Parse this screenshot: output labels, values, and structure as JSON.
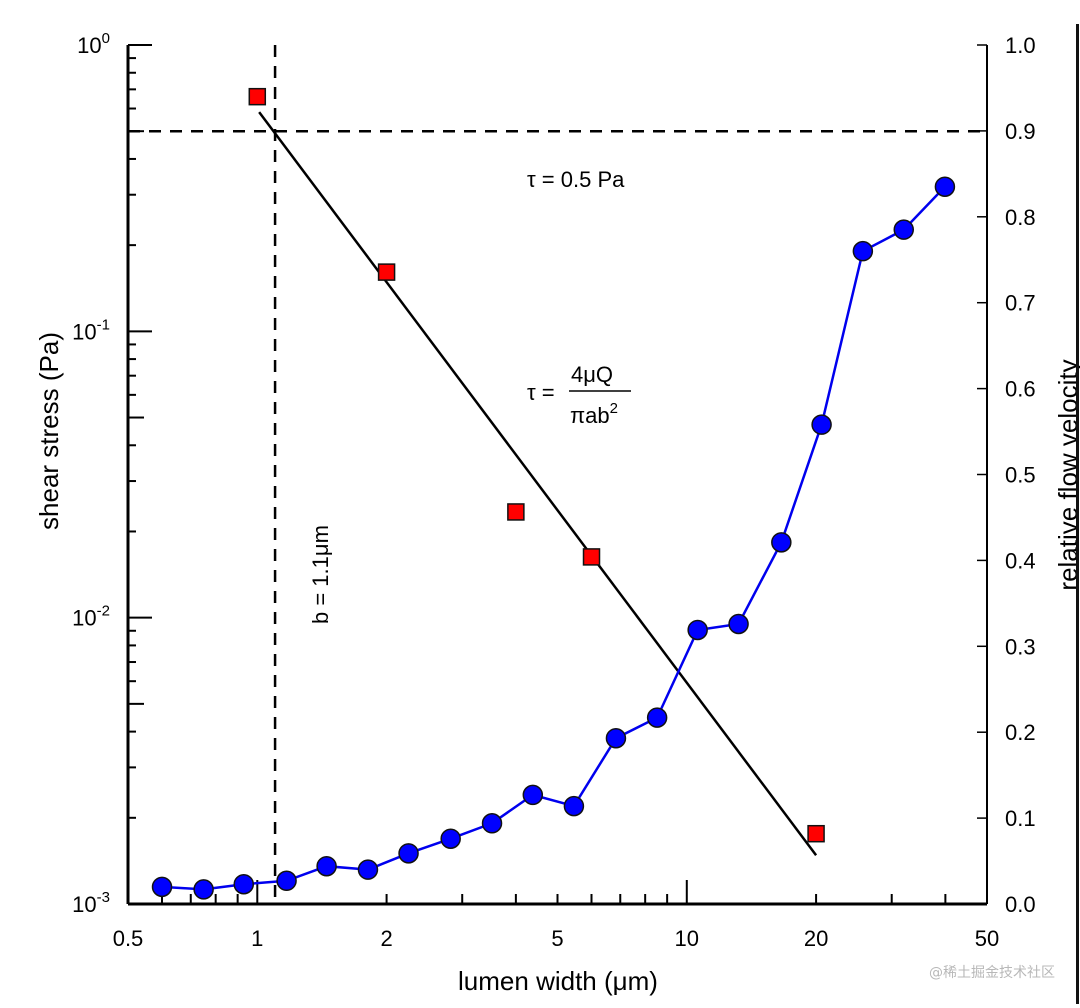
{
  "chart_data": {
    "type": "scatter",
    "title": "",
    "xlabel": "lumen width (μm)",
    "ylabel_left": "shear stress (Pa)",
    "ylabel_right": "relative flow velocity",
    "x_scale": "log",
    "xlim": [
      0.5,
      50
    ],
    "x_ticks": [
      {
        "value": 0.5,
        "label": "0.5"
      },
      {
        "value": 1,
        "label": "1"
      },
      {
        "value": 2,
        "label": "2"
      },
      {
        "value": 5,
        "label": "5"
      },
      {
        "value": 10,
        "label": "10"
      },
      {
        "value": 20,
        "label": "20"
      },
      {
        "value": 50,
        "label": "50"
      }
    ],
    "y_left_scale": "log",
    "y_left_lim": [
      0.001,
      1
    ],
    "y_left_ticks": [
      {
        "value": 0.001,
        "base": "10",
        "exp": "-3"
      },
      {
        "value": 0.01,
        "base": "10",
        "exp": "-2"
      },
      {
        "value": 0.1,
        "base": "10",
        "exp": "-1"
      },
      {
        "value": 1,
        "base": "10",
        "exp": "0"
      }
    ],
    "y_right_scale": "linear",
    "y_right_lim": [
      0.0,
      1.0
    ],
    "y_right_ticks": [
      "0.0",
      "0.1",
      "0.2",
      "0.3",
      "0.4",
      "0.5",
      "0.6",
      "0.7",
      "0.8",
      "0.9",
      "1.0"
    ],
    "grid": false,
    "series": [
      {
        "name": "shear stress",
        "axis": "left",
        "marker": "square",
        "color": "#ff0000",
        "x": [
          1.0,
          2.0,
          4.0,
          6.0,
          20.0
        ],
        "y": [
          0.66,
          0.161,
          0.0234,
          0.0163,
          0.00176
        ]
      },
      {
        "name": "shear stress fit",
        "axis": "left",
        "style": "line",
        "color": "#000000",
        "x": [
          1.01,
          20.0
        ],
        "y": [
          0.583,
          0.00148
        ]
      },
      {
        "name": "relative flow velocity",
        "axis": "right",
        "marker": "circle",
        "color": "#0000ff",
        "x": [
          0.6,
          0.75,
          0.93,
          1.17,
          1.45,
          1.81,
          2.25,
          2.82,
          3.52,
          4.38,
          5.46,
          6.84,
          8.53,
          10.6,
          13.2,
          16.6,
          20.6,
          25.7,
          32.0,
          39.9
        ],
        "y": [
          0.02,
          0.017,
          0.023,
          0.027,
          0.044,
          0.04,
          0.059,
          0.076,
          0.094,
          0.127,
          0.114,
          0.193,
          0.217,
          0.319,
          0.326,
          0.421,
          0.558,
          0.76,
          0.785,
          0.835
        ]
      }
    ],
    "reference_lines": [
      {
        "name": "tau-threshold",
        "orientation": "horizontal",
        "axis": "left",
        "value": 0.5,
        "style": "dashed"
      },
      {
        "name": "b-threshold",
        "orientation": "vertical",
        "value": 1.1,
        "style": "dashed"
      }
    ],
    "annotations": {
      "tau_threshold": "τ = 0.5 Pa",
      "b_label": "b = 1.1μm",
      "formula_lhs": "τ =",
      "formula_numerator": "4μQ",
      "formula_denominator_base": "πab",
      "formula_denominator_exp": "2"
    },
    "watermark": "@稀土掘金技术社区"
  }
}
